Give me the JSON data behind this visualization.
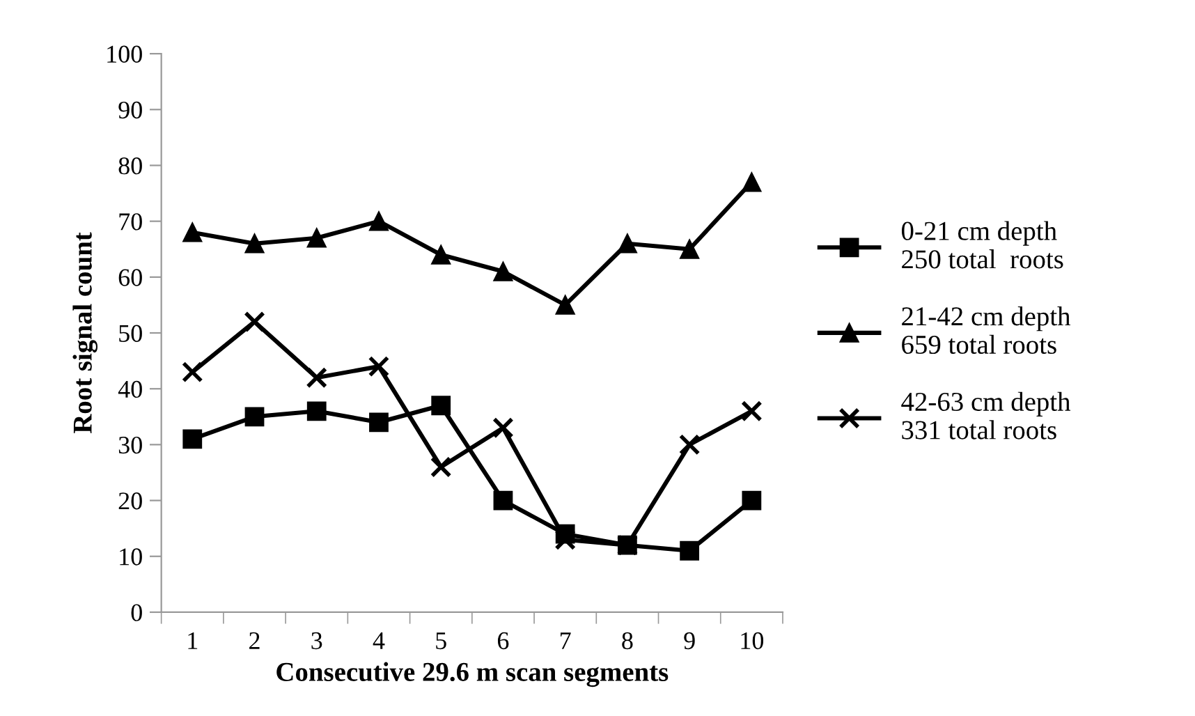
{
  "chart_data": {
    "type": "line",
    "xlabel": "Consecutive 29.6 m scan segments",
    "ylabel": "Root signal count",
    "categories": [
      "1",
      "2",
      "3",
      "4",
      "5",
      "6",
      "7",
      "8",
      "9",
      "10"
    ],
    "series": [
      {
        "name": "0-21 cm depth\n250 total  roots",
        "color": "#000000",
        "marker": "square",
        "values": [
          31,
          35,
          36,
          34,
          37,
          20,
          14,
          12,
          11,
          20
        ]
      },
      {
        "name": "21-42 cm depth\n659 total roots",
        "color": "#000000",
        "marker": "triangle",
        "values": [
          68,
          66,
          67,
          70,
          64,
          61,
          55,
          66,
          65,
          77
        ]
      },
      {
        "name": "42-63 cm depth\n331 total roots",
        "color": "#000000",
        "marker": "cross",
        "values": [
          43,
          52,
          42,
          44,
          26,
          33,
          13,
          12,
          30,
          36
        ]
      }
    ],
    "ylim": [
      0,
      100
    ],
    "yticks": [
      0,
      10,
      20,
      30,
      40,
      50,
      60,
      70,
      80,
      90,
      100
    ],
    "grid": false,
    "legend": "right",
    "line_style": "solid"
  }
}
